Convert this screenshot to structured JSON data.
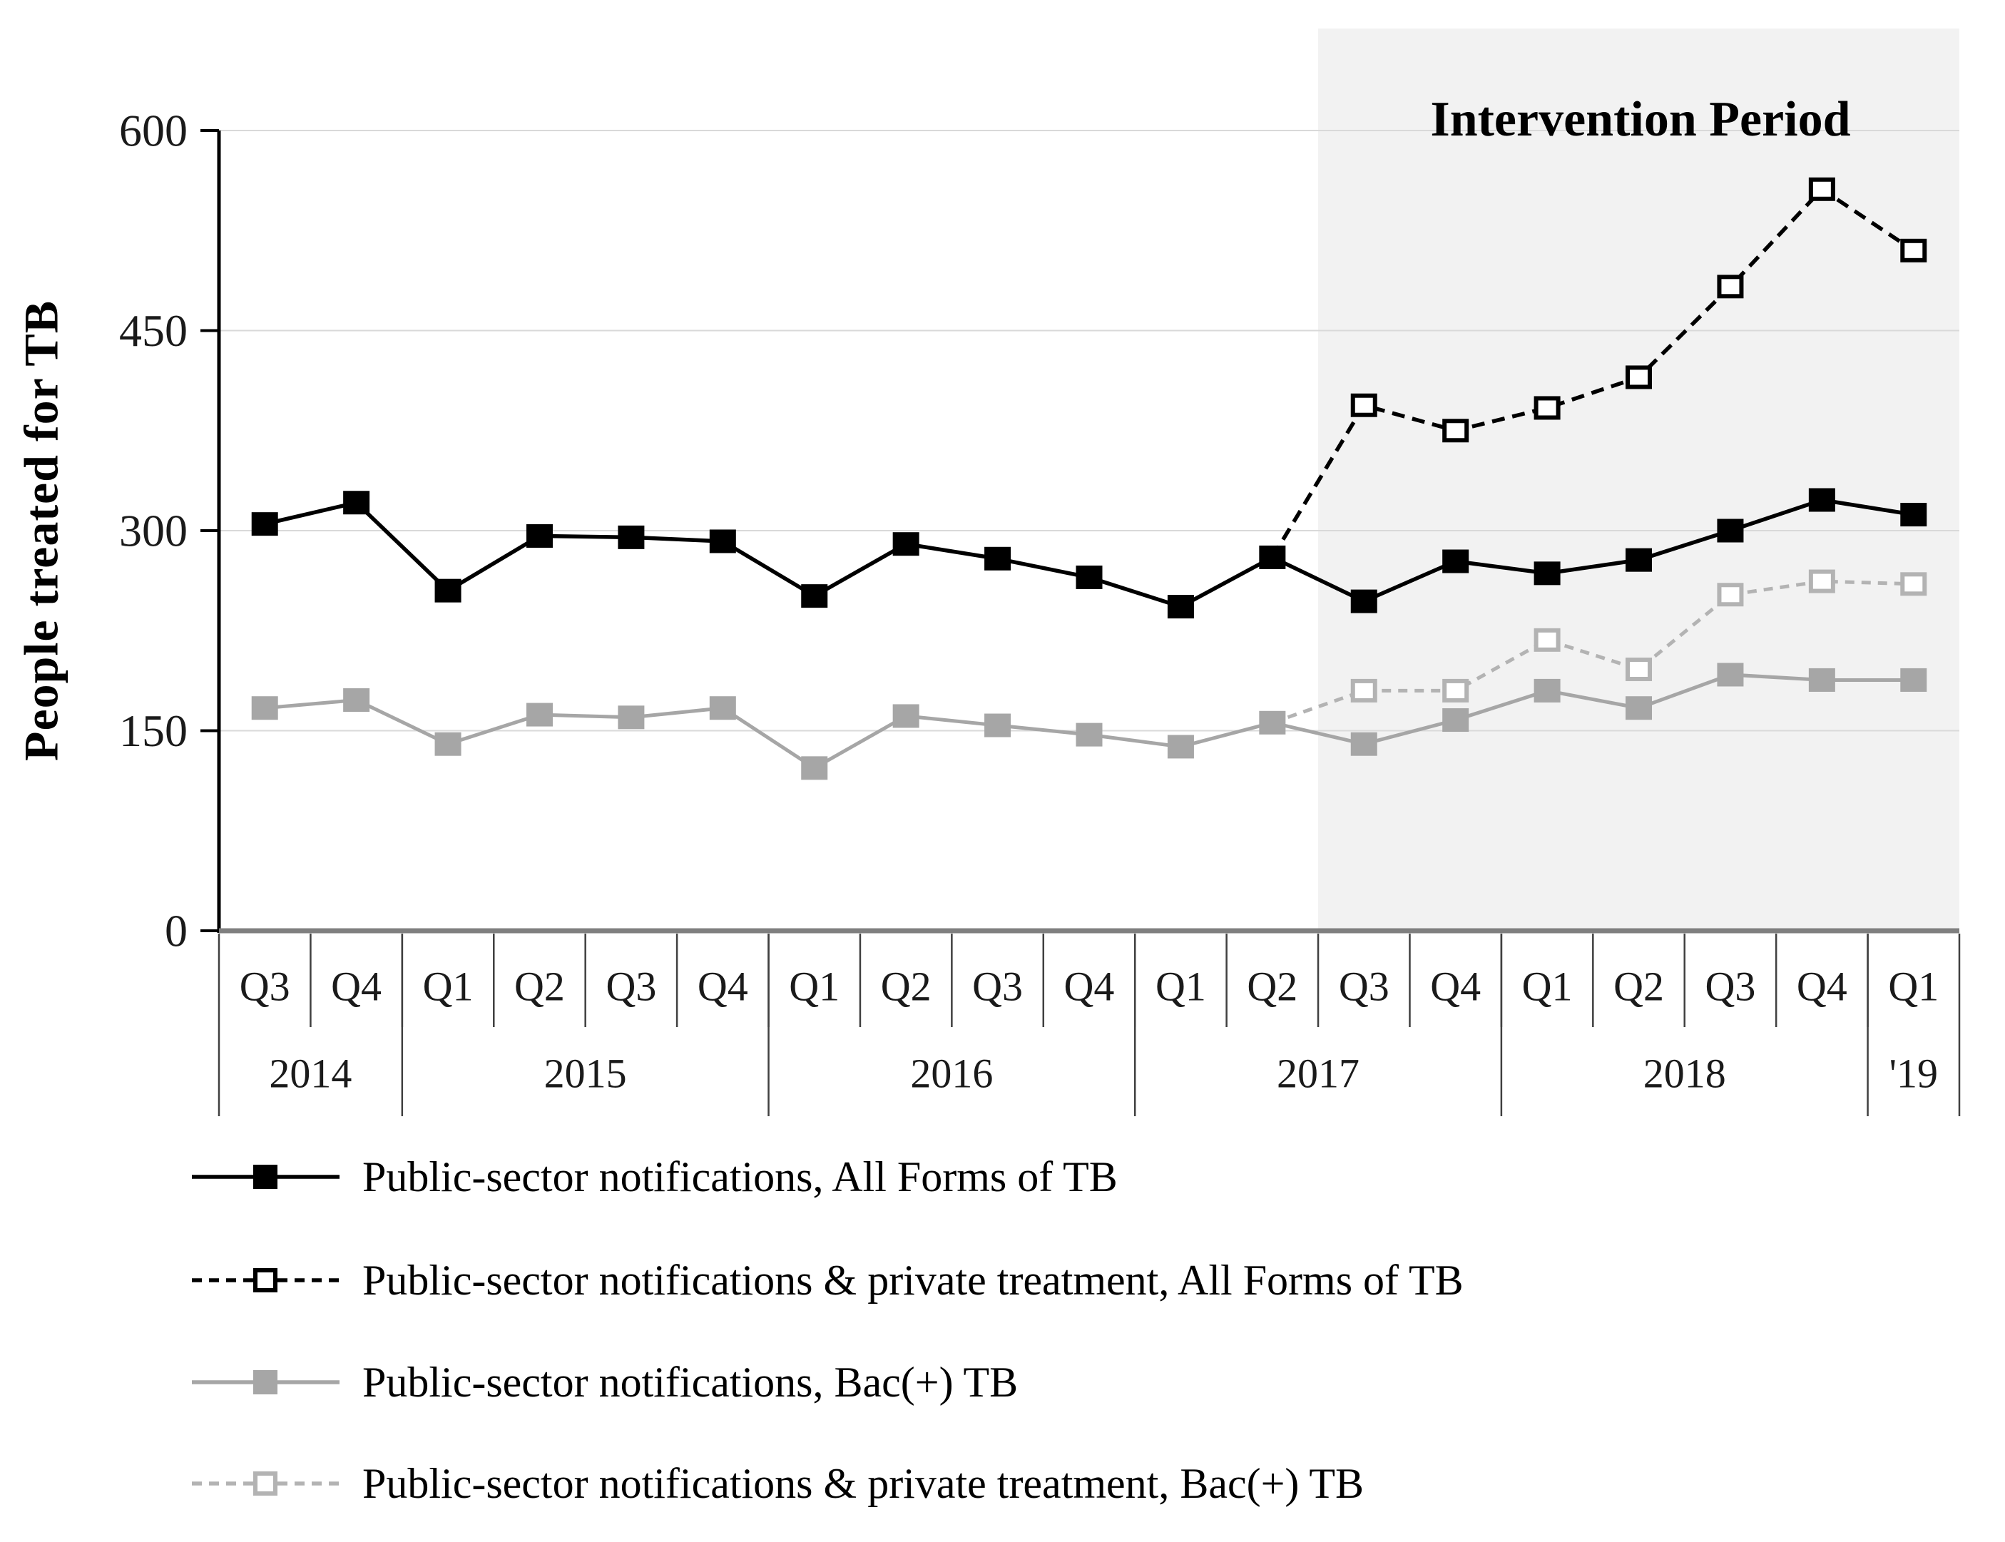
{
  "chart_data": {
    "type": "line",
    "title": "",
    "ylabel": "People treated for TB",
    "xlabel": "",
    "annotation": "Intervention Period",
    "ylim": [
      0,
      600
    ],
    "y_ticks": [
      0,
      150,
      300,
      450,
      600
    ],
    "grid": "horizontal-light",
    "legend_position": "bottom-left",
    "quarters": [
      "Q3",
      "Q4",
      "Q1",
      "Q2",
      "Q3",
      "Q4",
      "Q1",
      "Q2",
      "Q3",
      "Q4",
      "Q1",
      "Q2",
      "Q3",
      "Q4",
      "Q1",
      "Q2",
      "Q3",
      "Q4",
      "Q1"
    ],
    "year_groups": [
      {
        "label": "2014",
        "quarters": 2
      },
      {
        "label": "2015",
        "quarters": 4
      },
      {
        "label": "2016",
        "quarters": 4
      },
      {
        "label": "2017",
        "quarters": 4
      },
      {
        "label": "2018",
        "quarters": 4
      },
      {
        "label": "'19",
        "quarters": 1
      }
    ],
    "intervention_start_index": 12,
    "series": [
      {
        "name": "public-notifications-all-forms",
        "legend_label": "Public-sector notifications, All Forms of TB",
        "line": "solid",
        "marker": "filled-square",
        "color": "#000000",
        "marker_start_index": 0,
        "values": [
          305,
          321,
          255,
          296,
          295,
          292,
          251,
          290,
          279,
          265,
          243,
          280,
          247,
          277,
          268,
          278,
          300,
          323,
          312
        ]
      },
      {
        "name": "public-private-all-forms",
        "legend_label": "Public-sector notifications & private treatment, All Forms of TB",
        "line": "dashed",
        "marker": "open-square",
        "color": "#000000",
        "marker_start_index": 12,
        "values": [
          null,
          null,
          null,
          null,
          null,
          null,
          null,
          null,
          null,
          null,
          null,
          280,
          394,
          375,
          392,
          415,
          483,
          556,
          510
        ]
      },
      {
        "name": "public-notifications-bac",
        "legend_label": "Public-sector notifications, Bac(+) TB",
        "line": "solid",
        "marker": "filled-square",
        "color": "#a6a6a6",
        "marker_start_index": 0,
        "values": [
          167,
          173,
          140,
          162,
          160,
          167,
          122,
          161,
          154,
          147,
          138,
          156,
          140,
          158,
          180,
          167,
          192,
          188,
          188
        ]
      },
      {
        "name": "public-private-bac",
        "legend_label": "Public-sector notifications & private treatment, Bac(+) TB",
        "line": "dashed",
        "marker": "open-square",
        "color": "#b3b3b3",
        "marker_start_index": 12,
        "values": [
          null,
          null,
          null,
          null,
          null,
          null,
          null,
          null,
          null,
          null,
          null,
          156,
          180,
          180,
          218,
          196,
          252,
          262,
          260
        ]
      }
    ],
    "colors": {
      "intervention_shade": "#f2f2f2",
      "gridline": "#d9d9d9",
      "y_axis": "#000000",
      "x_axis": "#7f7f7f",
      "divider": "#404040",
      "tick_text": "#1a1a1a"
    }
  }
}
